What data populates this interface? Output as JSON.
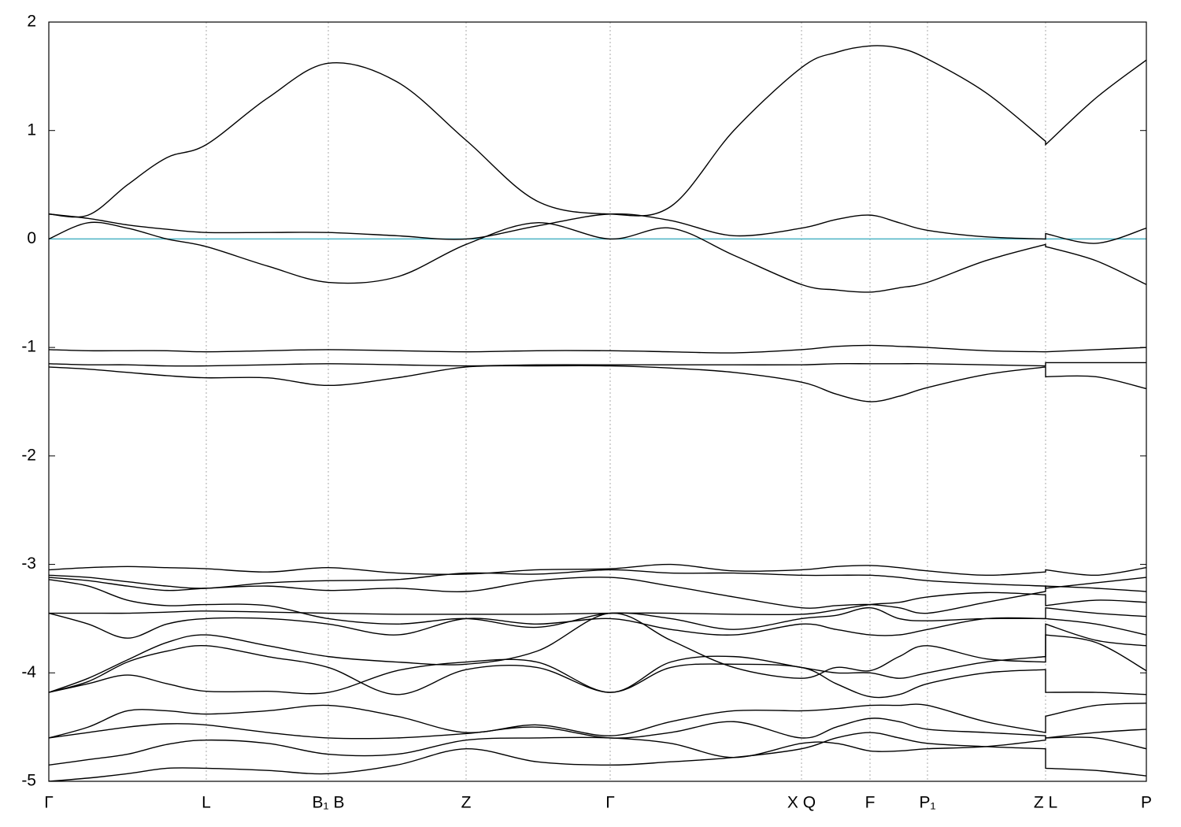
{
  "chart_data": {
    "type": "line",
    "x": [
      0,
      50,
      100,
      150,
      200,
      278,
      355,
      442,
      530,
      620,
      713,
      790,
      870,
      956,
      1000,
      1043,
      1080,
      1116,
      1190,
      1266,
      1266,
      1330,
      1394
    ],
    "xlim": [
      0,
      1394
    ],
    "xticks": [
      {
        "value": 0,
        "label": "Γ"
      },
      {
        "value": 200,
        "label": "L"
      },
      {
        "value": 355,
        "label": "B₁ B"
      },
      {
        "value": 530,
        "label": "Z"
      },
      {
        "value": 713,
        "label": "Γ"
      },
      {
        "value": 956,
        "label": "X Q"
      },
      {
        "value": 1043,
        "label": "F"
      },
      {
        "value": 1116,
        "label": "P₁"
      },
      {
        "value": 1266,
        "label": "Z L"
      },
      {
        "value": 1394,
        "label": "P"
      }
    ],
    "ylim": [
      -5,
      2
    ],
    "yticks": [
      -5,
      -4,
      -3,
      -2,
      -1,
      0,
      1,
      2
    ],
    "xgrid": true,
    "color": "#000000",
    "fermi_level": 0,
    "fermi_color": "#4bb3c4",
    "series": [
      {
        "values": [
          0.23,
          0.22,
          0.5,
          0.75,
          0.87,
          1.3,
          1.62,
          1.45,
          0.91,
          0.35,
          0.23,
          0.3,
          1.0,
          1.58,
          1.72,
          1.78,
          1.76,
          1.66,
          1.35,
          0.9,
          0.87,
          1.3,
          1.65
        ]
      },
      {
        "values": [
          0.23,
          0.19,
          0.13,
          0.09,
          0.06,
          0.06,
          0.06,
          0.03,
          0.0,
          0.12,
          0.23,
          0.17,
          0.03,
          0.1,
          0.18,
          0.22,
          0.15,
          0.08,
          0.02,
          0.0,
          0.05,
          -0.04,
          0.1
        ]
      },
      {
        "values": [
          0.0,
          0.15,
          0.1,
          0.0,
          -0.07,
          -0.25,
          -0.4,
          -0.35,
          -0.05,
          0.15,
          0.0,
          0.1,
          -0.15,
          -0.42,
          -0.47,
          -0.49,
          -0.45,
          -0.4,
          -0.2,
          -0.05,
          -0.07,
          -0.2,
          -0.42
        ]
      },
      {
        "values": [
          -1.02,
          -1.03,
          -1.03,
          -1.03,
          -1.04,
          -1.03,
          -1.02,
          -1.03,
          -1.04,
          -1.03,
          -1.03,
          -1.04,
          -1.05,
          -1.02,
          -0.99,
          -0.98,
          -0.99,
          -1.0,
          -1.03,
          -1.04,
          -1.04,
          -1.02,
          -1.0
        ]
      },
      {
        "values": [
          -1.15,
          -1.16,
          -1.16,
          -1.17,
          -1.17,
          -1.16,
          -1.15,
          -1.16,
          -1.17,
          -1.16,
          -1.16,
          -1.16,
          -1.16,
          -1.16,
          -1.15,
          -1.15,
          -1.15,
          -1.15,
          -1.16,
          -1.17,
          -1.14,
          -1.14,
          -1.14
        ]
      },
      {
        "values": [
          -1.18,
          -1.2,
          -1.23,
          -1.26,
          -1.28,
          -1.28,
          -1.35,
          -1.28,
          -1.18,
          -1.17,
          -1.17,
          -1.19,
          -1.23,
          -1.32,
          -1.43,
          -1.5,
          -1.45,
          -1.37,
          -1.25,
          -1.18,
          -1.27,
          -1.27,
          -1.38
        ]
      },
      {
        "values": [
          -3.05,
          -3.03,
          -3.02,
          -3.03,
          -3.04,
          -3.07,
          -3.03,
          -3.08,
          -3.09,
          -3.05,
          -3.04,
          -3.0,
          -3.06,
          -3.05,
          -3.02,
          -3.01,
          -3.03,
          -3.06,
          -3.1,
          -3.07,
          -3.05,
          -3.1,
          -3.03
        ]
      },
      {
        "values": [
          -3.1,
          -3.12,
          -3.16,
          -3.2,
          -3.22,
          -3.17,
          -3.15,
          -3.14,
          -3.08,
          -3.09,
          -3.05,
          -3.08,
          -3.08,
          -3.1,
          -3.1,
          -3.1,
          -3.12,
          -3.15,
          -3.18,
          -3.2,
          -3.22,
          -3.17,
          -3.12
        ]
      },
      {
        "values": [
          -3.12,
          -3.15,
          -3.2,
          -3.24,
          -3.22,
          -3.2,
          -3.24,
          -3.22,
          -3.25,
          -3.15,
          -3.12,
          -3.2,
          -3.3,
          -3.4,
          -3.38,
          -3.37,
          -3.4,
          -3.45,
          -3.35,
          -3.25,
          -3.2,
          -3.22,
          -3.25
        ]
      },
      {
        "values": [
          -3.45,
          -3.45,
          -3.45,
          -3.44,
          -3.43,
          -3.44,
          -3.45,
          -3.46,
          -3.46,
          -3.46,
          -3.45,
          -3.45,
          -3.46,
          -3.46,
          -3.42,
          -3.37,
          -3.35,
          -3.3,
          -3.26,
          -3.28,
          -3.38,
          -3.33,
          -3.35
        ]
      },
      {
        "values": [
          -3.14,
          -3.2,
          -3.33,
          -3.38,
          -3.37,
          -3.38,
          -3.5,
          -3.55,
          -3.5,
          -3.58,
          -3.45,
          -3.5,
          -3.6,
          -3.5,
          -3.47,
          -3.4,
          -3.5,
          -3.52,
          -3.5,
          -3.5,
          -3.4,
          -3.45,
          -3.48
        ]
      },
      {
        "values": [
          -3.45,
          -3.55,
          -3.68,
          -3.55,
          -3.5,
          -3.5,
          -3.55,
          -3.65,
          -3.5,
          -3.55,
          -3.5,
          -3.6,
          -3.65,
          -3.55,
          -3.6,
          -3.65,
          -3.65,
          -3.6,
          -3.5,
          -3.5,
          -3.5,
          -3.55,
          -3.65
        ]
      },
      {
        "values": [
          -4.18,
          -4.05,
          -3.88,
          -3.72,
          -3.65,
          -3.75,
          -3.85,
          -3.9,
          -3.92,
          -3.8,
          -3.45,
          -3.7,
          -3.95,
          -4.05,
          -3.95,
          -3.98,
          -3.85,
          -3.75,
          -3.87,
          -3.9,
          -3.65,
          -3.72,
          -3.98
        ]
      },
      {
        "values": [
          -4.18,
          -4.1,
          -4.02,
          -4.1,
          -4.17,
          -4.17,
          -4.18,
          -3.98,
          -3.9,
          -3.9,
          -4.18,
          -3.9,
          -3.85,
          -3.95,
          -4.0,
          -4.0,
          -4.05,
          -4.0,
          -3.9,
          -3.85,
          -3.55,
          -3.7,
          -3.75
        ]
      },
      {
        "values": [
          -4.18,
          -4.08,
          -3.9,
          -3.8,
          -3.75,
          -3.85,
          -3.95,
          -4.2,
          -3.97,
          -3.95,
          -4.18,
          -3.95,
          -3.92,
          -3.95,
          -4.1,
          -4.22,
          -4.2,
          -4.1,
          -4.0,
          -3.97,
          -4.18,
          -4.18,
          -4.2
        ]
      },
      {
        "values": [
          -4.6,
          -4.5,
          -4.35,
          -4.35,
          -4.38,
          -4.35,
          -4.3,
          -4.4,
          -4.55,
          -4.48,
          -4.58,
          -4.45,
          -4.35,
          -4.35,
          -4.33,
          -4.3,
          -4.3,
          -4.3,
          -4.45,
          -4.55,
          -4.4,
          -4.3,
          -4.28
        ]
      },
      {
        "values": [
          -4.6,
          -4.55,
          -4.5,
          -4.47,
          -4.48,
          -4.55,
          -4.6,
          -4.6,
          -4.56,
          -4.5,
          -4.6,
          -4.55,
          -4.45,
          -4.6,
          -4.5,
          -4.42,
          -4.45,
          -4.52,
          -4.55,
          -4.58,
          -4.6,
          -4.55,
          -4.52
        ]
      },
      {
        "values": [
          -4.85,
          -4.8,
          -4.75,
          -4.66,
          -4.62,
          -4.65,
          -4.75,
          -4.75,
          -4.62,
          -4.6,
          -4.6,
          -4.65,
          -4.78,
          -4.65,
          -4.65,
          -4.72,
          -4.72,
          -4.7,
          -4.68,
          -4.62,
          -4.6,
          -4.6,
          -4.7
        ]
      },
      {
        "values": [
          -5.0,
          -4.97,
          -4.93,
          -4.88,
          -4.88,
          -4.9,
          -4.93,
          -4.85,
          -4.7,
          -4.82,
          -4.85,
          -4.82,
          -4.78,
          -4.7,
          -4.6,
          -4.55,
          -4.6,
          -4.65,
          -4.68,
          -4.7,
          -4.88,
          -4.9,
          -4.95
        ]
      }
    ]
  }
}
